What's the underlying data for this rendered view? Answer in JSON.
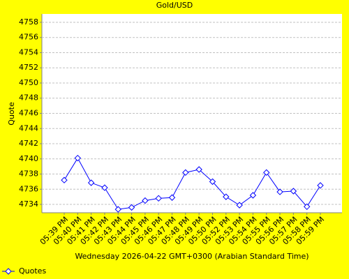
{
  "chart_data": {
    "type": "line",
    "title": "Gold/USD",
    "y_label": "Quote",
    "x_label": "Wednesday 2026-04-22 GMT+0300 (Arabian Standard Time)",
    "categories": [
      "05:39 PM",
      "05:40 PM",
      "05:41 PM",
      "05:42 PM",
      "05:43 PM",
      "05:44 PM",
      "05:45 PM",
      "05:46 PM",
      "05:47 PM",
      "05:48 PM",
      "05:49 PM",
      "05:50 PM",
      "05:52 PM",
      "05:53 PM",
      "05:54 PM",
      "05:55 PM",
      "05:56 PM",
      "05:57 PM",
      "05:58 PM",
      "05:59 PM"
    ],
    "series": [
      {
        "name": "Quotes",
        "color": "#0000ff",
        "values": [
          4737.2,
          4740.1,
          4736.85,
          4736.2,
          4733.35,
          4733.6,
          4734.5,
          4734.8,
          4734.9,
          4738.2,
          4738.6,
          4737.0,
          4735.0,
          4733.9,
          4735.2,
          4738.2,
          4735.65,
          4735.75,
          4733.7,
          4736.5
        ]
      }
    ],
    "ylim": [
      4732.9,
      4759.1
    ],
    "yticks": [
      4734,
      4736,
      4738,
      4740,
      4742,
      4744,
      4746,
      4748,
      4750,
      4752,
      4754,
      4756,
      4758
    ],
    "grid": true,
    "legend": "bottom-left"
  }
}
